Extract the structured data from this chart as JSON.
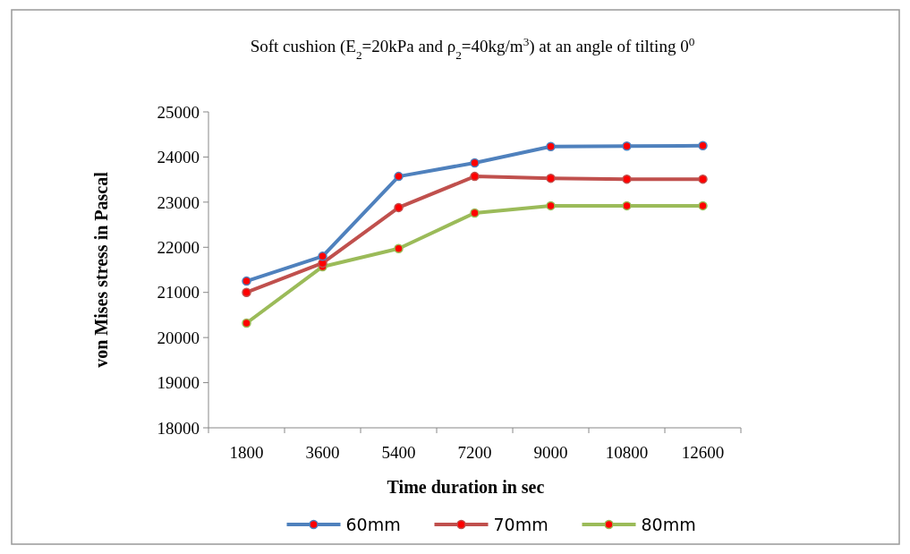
{
  "chart_data": {
    "type": "line",
    "title": "Soft cushion (E$_{2}$=20kPa and ρ$_{2}$=40kg/m$^{3}$) at an angle of tilting 0$^{0}$",
    "xlabel": "Time duration in sec",
    "ylabel": "von Mises stress in Pascal",
    "categories": [
      "1800",
      "3600",
      "5400",
      "7200",
      "9000",
      "10800",
      "12600"
    ],
    "series": [
      {
        "name": "60mm",
        "color": "#4f81bd",
        "values": [
          21250,
          21800,
          23570,
          23870,
          24230,
          24240,
          24250
        ]
      },
      {
        "name": "70mm",
        "color": "#c0504d",
        "values": [
          21000,
          21650,
          22880,
          23570,
          23530,
          23510,
          23510
        ]
      },
      {
        "name": "80mm",
        "color": "#9bbb59",
        "values": [
          20320,
          21570,
          21970,
          22760,
          22920,
          22920,
          22920
        ]
      }
    ],
    "ylim": [
      18000,
      25000
    ],
    "yticks": [
      18000,
      19000,
      20000,
      21000,
      22000,
      23000,
      24000,
      25000
    ],
    "grid": false,
    "legend": "bottom",
    "marker": "circle",
    "line_style": "solid"
  }
}
